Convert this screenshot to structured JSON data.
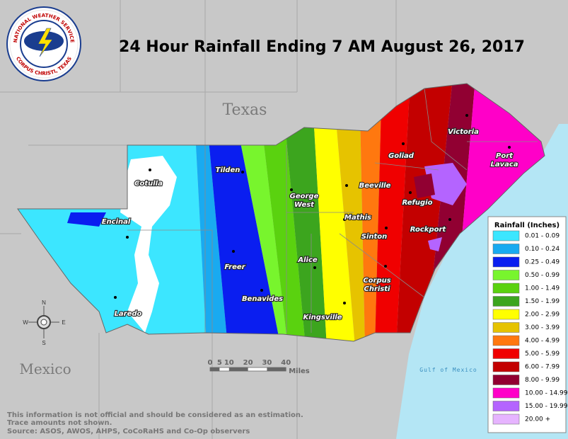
{
  "title": "24 Hour Rainfall Ending 7 AM August 26, 2017",
  "logo": {
    "top": "NATIONAL WEATHER SERVICE",
    "bottom": "CORPUS CHRISTI, TEXAS"
  },
  "map_labels": {
    "state": "Texas",
    "country": "Mexico",
    "gulf": "Gulf of Mexico"
  },
  "cities": [
    {
      "lines": [
        "Cotulla"
      ]
    },
    {
      "lines": [
        "Tilden"
      ]
    },
    {
      "lines": [
        "Encinal"
      ]
    },
    {
      "lines": [
        "George",
        "West"
      ]
    },
    {
      "lines": [
        "Beeville"
      ]
    },
    {
      "lines": [
        "Goliad"
      ]
    },
    {
      "lines": [
        "Victoria"
      ]
    },
    {
      "lines": [
        "Port",
        "Lavaca"
      ]
    },
    {
      "lines": [
        "Refugio"
      ]
    },
    {
      "lines": [
        "Mathis"
      ]
    },
    {
      "lines": [
        "Sinton"
      ]
    },
    {
      "lines": [
        "Rockport"
      ]
    },
    {
      "lines": [
        "Freer"
      ]
    },
    {
      "lines": [
        "Alice"
      ]
    },
    {
      "lines": [
        "Corpus",
        "Christi"
      ]
    },
    {
      "lines": [
        "Benavides"
      ]
    },
    {
      "lines": [
        "Laredo"
      ]
    },
    {
      "lines": [
        "Kingsville"
      ]
    }
  ],
  "legend": {
    "title": "Rainfall (Inches)",
    "items": [
      {
        "label": "0.01 - 0.09",
        "color": "#3ce6ff"
      },
      {
        "label": "0.10 - 0.24",
        "color": "#19aaf0"
      },
      {
        "label": "0.25 - 0.49",
        "color": "#0a1ef0"
      },
      {
        "label": "0.50 - 0.99",
        "color": "#78f52d"
      },
      {
        "label": "1.00 - 1.49",
        "color": "#5ad20f"
      },
      {
        "label": "1.50 - 1.99",
        "color": "#3ca51e"
      },
      {
        "label": "2.00 - 2.99",
        "color": "#ffff00"
      },
      {
        "label": "3.00 - 3.99",
        "color": "#e6c300"
      },
      {
        "label": "4.00 - 4.99",
        "color": "#ff780f"
      },
      {
        "label": "5.00 - 5.99",
        "color": "#f00000"
      },
      {
        "label": "6.00 - 7.99",
        "color": "#c30000"
      },
      {
        "label": "8.00 - 9.99",
        "color": "#910032"
      },
      {
        "label": "10.00 - 14.99",
        "color": "#ff00c8"
      },
      {
        "label": "15.00 - 19.99",
        "color": "#b464ff"
      },
      {
        "label": "20.00 +",
        "color": "#e6b4ff"
      }
    ]
  },
  "scale_bar": {
    "ticks": [
      0,
      5,
      10,
      20,
      30,
      40
    ],
    "unit": "Miles"
  },
  "compass": {
    "n": "N",
    "e": "E",
    "s": "S",
    "w": "W"
  },
  "disclaimer": [
    "This information is not official and should be considered as an estimation.",
    "Trace amounts not shown.",
    "Source: ASOS, AWOS, AHPS, CoCoRaHS and Co-Op observers"
  ]
}
